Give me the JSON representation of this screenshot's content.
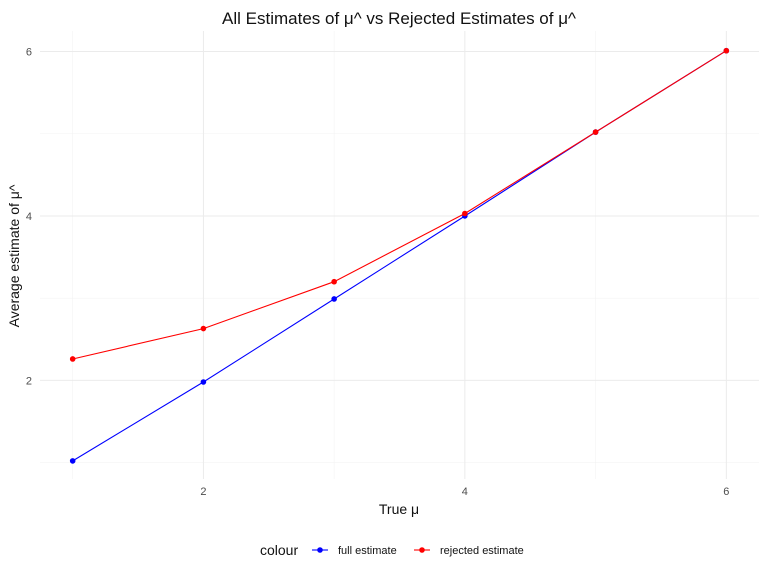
{
  "chart_data": {
    "type": "line",
    "title": "All Estimates of μ^ vs Rejected Estimates of μ^",
    "xlabel": "True μ",
    "ylabel": "Average estimate of μ^",
    "xlim": [
      0.75,
      6.25
    ],
    "ylim": [
      0.8,
      6.25
    ],
    "x_ticks": [
      2,
      4,
      6
    ],
    "y_ticks": [
      2,
      4,
      6
    ],
    "x_minor": [
      1,
      3,
      5
    ],
    "y_minor": [
      1,
      3,
      5
    ],
    "grid": true,
    "legend_position": "bottom",
    "legend_title": "colour",
    "x": [
      1,
      2,
      3,
      4,
      5,
      6
    ],
    "series": [
      {
        "name": "full estimate",
        "color": "#0000ff",
        "values": [
          1.02,
          1.98,
          2.99,
          4.0,
          5.02,
          6.01
        ]
      },
      {
        "name": "rejected estimate",
        "color": "#ff0000",
        "values": [
          2.26,
          2.63,
          3.2,
          4.03,
          5.02,
          6.01
        ]
      }
    ]
  }
}
